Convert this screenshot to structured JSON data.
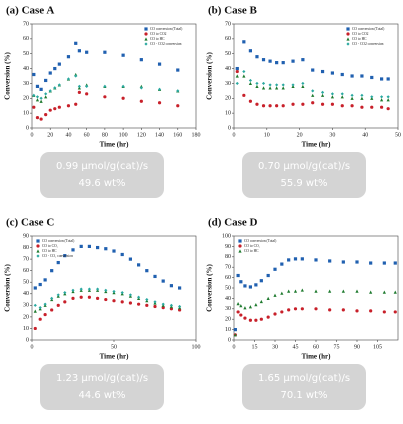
{
  "chart_data": [
    {
      "type": "scatter",
      "title": "(a) Case A",
      "x_label": "Time (hr)",
      "y_label": "Conversion (%)",
      "x": [
        2,
        6,
        10,
        15,
        20,
        25,
        30,
        40,
        48,
        52,
        60,
        80,
        100,
        120,
        140,
        160
      ],
      "series": [
        {
          "name": "CO conversion (Total)",
          "color": "#2060b0",
          "values": [
            36,
            28,
            26,
            32,
            37,
            40,
            43,
            48,
            57,
            52,
            51,
            51,
            49,
            46,
            43,
            39
          ]
        },
        {
          "name": "CO to CO2",
          "color": "#c8202a",
          "values": [
            14,
            7,
            6,
            9,
            12,
            13,
            14,
            15,
            16,
            24,
            23,
            21,
            20,
            18,
            17,
            15
          ]
        },
        {
          "name": "CO to HC",
          "color": "#1e7a2e",
          "values": [
            22,
            19,
            18,
            21,
            25,
            27,
            29,
            33,
            36,
            27,
            29,
            28,
            28,
            28,
            26,
            25
          ]
        },
        {
          "name": "CO - CO2 conversion",
          "color": "#2aa8a0",
          "values": [
            22,
            21,
            20,
            23,
            25,
            27,
            29,
            33,
            35,
            28,
            28,
            28,
            28,
            27,
            26,
            25
          ]
        }
      ],
      "xlim": [
        0,
        180
      ],
      "xticks": [
        0,
        20,
        40,
        60,
        80,
        100,
        120,
        140,
        160,
        180
      ],
      "ylim": [
        0,
        70
      ],
      "yticks": [
        0,
        10,
        20,
        30,
        40,
        50,
        60,
        70
      ],
      "legend": "upper right",
      "annotations": [
        "0.99 μmol/g(cat)/s",
        "49.6 wt%"
      ]
    },
    {
      "type": "scatter",
      "title": "(b) Case B",
      "x_label": "Time (hr)",
      "y_label": "Conversion (%)",
      "x": [
        1,
        3,
        5,
        7,
        9,
        11,
        13,
        15,
        18,
        21,
        24,
        27,
        30,
        33,
        36,
        39,
        42,
        45,
        47
      ],
      "series": [
        {
          "name": "CO conversion (Total)",
          "color": "#2060b0",
          "values": [
            40,
            58,
            52,
            48,
            46,
            45,
            44,
            44,
            45,
            46,
            39,
            38,
            37,
            36,
            35,
            35,
            34,
            33,
            33
          ]
        },
        {
          "name": "CO to CO2",
          "color": "#c8202a",
          "values": [
            38,
            22,
            18,
            16,
            15,
            15,
            15,
            15,
            16,
            16,
            17,
            16,
            16,
            15,
            15,
            14,
            14,
            14,
            13
          ]
        },
        {
          "name": "CO to HC",
          "color": "#1e7a2e",
          "values": [
            35,
            35,
            30,
            28,
            27,
            27,
            27,
            27,
            28,
            28,
            22,
            22,
            21,
            21,
            20,
            20,
            20,
            19,
            19
          ]
        },
        {
          "name": "CO - CO2 conversion",
          "color": "#2aa8a0",
          "values": [
            30,
            38,
            32,
            30,
            30,
            29,
            29,
            29,
            29,
            30,
            25,
            24,
            23,
            23,
            22,
            22,
            21,
            21,
            21
          ]
        }
      ],
      "xlim": [
        0,
        50
      ],
      "xticks": [
        0,
        10,
        20,
        30,
        40,
        50
      ],
      "ylim": [
        0,
        70
      ],
      "yticks": [
        0,
        10,
        20,
        30,
        40,
        50,
        60,
        70
      ],
      "legend": "upper right",
      "annotations": [
        "0.70 μmol/g(cat)/s",
        "55.9 wt%"
      ]
    },
    {
      "type": "scatter",
      "title": "(c) Case C",
      "x_label": "Time (hr)",
      "y_label": "Conversion (%)",
      "x": [
        2,
        5,
        8,
        12,
        16,
        20,
        25,
        30,
        35,
        40,
        45,
        50,
        55,
        60,
        65,
        70,
        75,
        80,
        85,
        90
      ],
      "series": [
        {
          "name": "CO conversion (Total)",
          "color": "#2060b0",
          "values": [
            45,
            48,
            52,
            60,
            67,
            73,
            78,
            81,
            81,
            80,
            79,
            77,
            74,
            70,
            65,
            60,
            55,
            51,
            47,
            45
          ]
        },
        {
          "name": "CO to CO₂",
          "color": "#c8202a",
          "values": [
            10,
            18,
            22,
            26,
            30,
            33,
            36,
            37,
            37,
            36,
            35,
            34,
            33,
            32,
            31,
            30,
            29,
            28,
            27,
            26
          ]
        },
        {
          "name": "CO to HC",
          "color": "#1e7a2e",
          "values": [
            25,
            27,
            30,
            35,
            38,
            40,
            42,
            43,
            43,
            43,
            42,
            41,
            40,
            38,
            36,
            34,
            32,
            30,
            29,
            28
          ]
        },
        {
          "name": "CO - CO₂ conversion",
          "color": "#2aa8a0",
          "values": [
            30,
            28,
            31,
            36,
            39,
            41,
            43,
            44,
            44,
            44,
            43,
            42,
            41,
            39,
            37,
            35,
            33,
            31,
            30,
            29
          ]
        }
      ],
      "xlim": [
        0,
        100
      ],
      "xticks": [
        0,
        50,
        100
      ],
      "ylim": [
        0,
        90
      ],
      "yticks": [
        0,
        10,
        20,
        30,
        40,
        50,
        60,
        70,
        80,
        90
      ],
      "legend": "upper left",
      "annotations": [
        "1.23 μmol/g(cat)/s",
        "44.6 wt%"
      ]
    },
    {
      "type": "scatter",
      "title": "(d) Case D",
      "x_label": "Time (hr)",
      "y_label": "Conversion (%)",
      "x": [
        1,
        3,
        5,
        8,
        12,
        16,
        20,
        25,
        30,
        35,
        40,
        45,
        50,
        60,
        70,
        80,
        90,
        100,
        110,
        118
      ],
      "series": [
        {
          "name": "CO conversion (Total)",
          "color": "#2060b0",
          "values": [
            10,
            62,
            56,
            52,
            51,
            53,
            57,
            62,
            68,
            73,
            77,
            78,
            78,
            77,
            76,
            75,
            75,
            74,
            74,
            74
          ]
        },
        {
          "name": "CO to CO₂",
          "color": "#c8202a",
          "values": [
            5,
            27,
            24,
            21,
            19,
            19,
            20,
            22,
            25,
            27,
            29,
            30,
            30,
            30,
            29,
            29,
            28,
            28,
            27,
            27
          ]
        },
        {
          "name": "CO to HC",
          "color": "#1e7a2e",
          "values": [
            5,
            35,
            33,
            31,
            32,
            34,
            37,
            40,
            43,
            45,
            47,
            47,
            48,
            47,
            47,
            47,
            47,
            46,
            46,
            46
          ]
        }
      ],
      "xlim": [
        0,
        120
      ],
      "xticks": [
        0,
        15,
        30,
        45,
        60,
        75,
        90,
        105
      ],
      "ylim": [
        0,
        100
      ],
      "yticks": [
        0,
        10,
        20,
        30,
        40,
        50,
        60,
        70,
        80,
        90,
        100
      ],
      "legend": "upper left",
      "annotations": [
        "1.65 μmol/g(cat)/s",
        "70.1 wt%"
      ]
    }
  ]
}
